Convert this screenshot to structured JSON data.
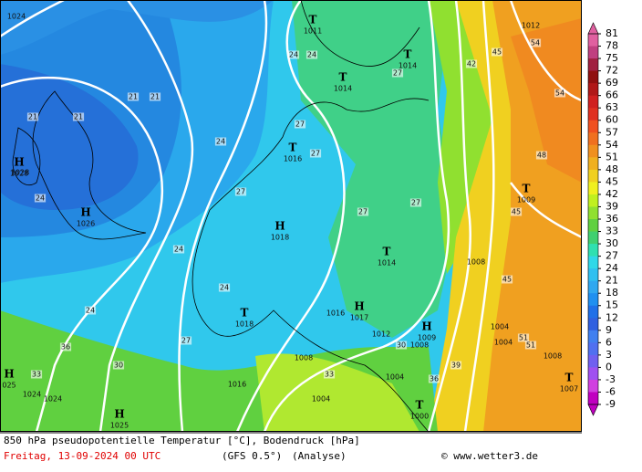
{
  "map": {
    "pressure_centers": [
      {
        "letter": "T",
        "value": "1011"
      },
      {
        "letter": "T",
        "value": "1014"
      },
      {
        "letter": "T",
        "value": "1014"
      },
      {
        "letter": "T",
        "value": "1016"
      },
      {
        "letter": "H",
        "value": "1028"
      },
      {
        "letter": "H",
        "value": "1026"
      },
      {
        "letter": "H",
        "value": "1018"
      },
      {
        "letter": "T",
        "value": "1009"
      },
      {
        "letter": "T",
        "value": "1014"
      },
      {
        "letter": "T",
        "value": "1018"
      },
      {
        "letter": "H",
        "value": "1017"
      },
      {
        "letter": "H",
        "value": "1009"
      },
      {
        "letter": "H",
        "value": "025"
      },
      {
        "letter": "T",
        "value": "1000"
      },
      {
        "letter": "T",
        "value": "1007"
      },
      {
        "letter": "H",
        "value": "1025"
      }
    ],
    "isobar_labels": [
      "1024",
      "1012",
      "1028",
      "1008",
      "1004",
      "1004",
      "1008",
      "1012",
      "1008",
      "1008",
      "1004",
      "1004",
      "1016",
      "1024",
      "1024",
      "1016"
    ],
    "isotherm_labels": [
      21,
      21,
      21,
      21,
      24,
      24,
      24,
      24,
      27,
      27,
      27,
      27,
      27,
      24,
      24,
      27,
      30,
      33,
      36,
      39,
      42,
      45,
      48,
      51,
      54,
      54,
      45,
      45,
      51,
      24,
      27,
      30,
      33,
      36
    ],
    "colorbar": {
      "ticks": [
        81,
        78,
        75,
        72,
        69,
        66,
        63,
        60,
        57,
        54,
        51,
        48,
        45,
        42,
        39,
        36,
        33,
        30,
        27,
        24,
        21,
        18,
        15,
        12,
        9,
        6,
        3,
        0,
        -3,
        -6,
        -9
      ],
      "colors": [
        "#e060a0",
        "#c04080",
        "#a02040",
        "#901010",
        "#b01818",
        "#d02020",
        "#e03020",
        "#f05020",
        "#f07020",
        "#f09020",
        "#f0b020",
        "#f0d020",
        "#f0f020",
        "#c0f020",
        "#90e030",
        "#60d040",
        "#40d070",
        "#30e0b0",
        "#30d8e8",
        "#30c0f0",
        "#30a8f0",
        "#2090f0",
        "#2070e8",
        "#3060e0",
        "#4080f0",
        "#5070f0",
        "#7060f0",
        "#a050f0",
        "#d040e0",
        "#c000c0"
      ]
    },
    "footer": {
      "line1": "850 hPa pseudopotentielle Temperatur [°C], Bodendruck [hPa]",
      "date": "Freitag, 13-09-2024  00 UTC",
      "model": "(GFS 0.5°)",
      "run": "(Analyse)",
      "copyright": "© www.wetter3.de"
    }
  }
}
